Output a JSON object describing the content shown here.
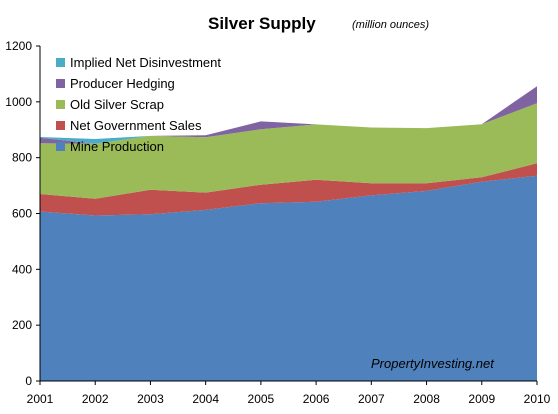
{
  "chart_data": {
    "type": "area",
    "stacked": true,
    "title": "Silver Supply",
    "subtitle": "(million ounces)",
    "xlabel": "",
    "ylabel": "",
    "x": [
      "2001",
      "2002",
      "2003",
      "2004",
      "2005",
      "2006",
      "2007",
      "2008",
      "2009",
      "2010"
    ],
    "ylim": [
      0,
      1200
    ],
    "yticks": [
      0,
      200,
      400,
      600,
      800,
      1000,
      1200
    ],
    "grid": false,
    "legend_position": "top-left",
    "series": [
      {
        "name": "Mine Production",
        "color": "#4f81bd",
        "values": [
          607,
          593,
          597,
          613,
          637,
          642,
          665,
          681,
          714,
          735
        ]
      },
      {
        "name": "Net Government Sales",
        "color": "#c0504d",
        "values": [
          63,
          60,
          88,
          62,
          66,
          79,
          43,
          27,
          16,
          45
        ]
      },
      {
        "name": "Old Silver Scrap",
        "color": "#9bbb59",
        "values": [
          182,
          197,
          193,
          198,
          199,
          198,
          200,
          198,
          190,
          215
        ]
      },
      {
        "name": "Producer Hedging",
        "color": "#8064a2",
        "values": [
          19,
          0,
          0,
          7,
          28,
          0,
          0,
          0,
          0,
          61
        ]
      },
      {
        "name": "Implied Net Disinvestment",
        "color": "#4bacc6",
        "values": [
          3,
          17,
          0,
          0,
          0,
          0,
          0,
          0,
          0,
          0
        ]
      }
    ],
    "annotation": "PropertyInvesting.net"
  }
}
